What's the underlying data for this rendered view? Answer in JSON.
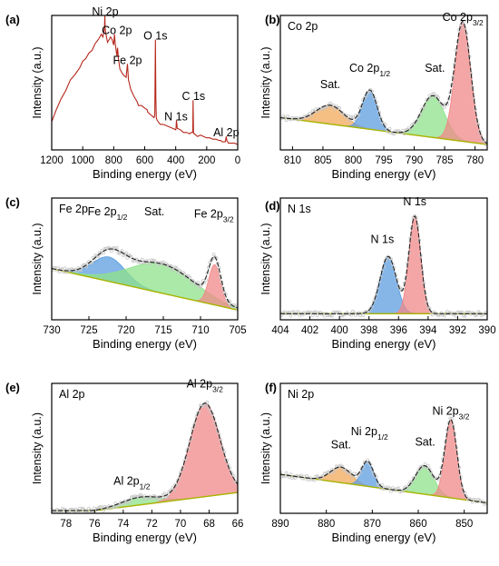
{
  "colors": {
    "survey_line": "#b5281c",
    "envelope": "#222222",
    "raw_points": "#c8c8c8",
    "background_fit": "#a8b400",
    "blue": "#5d9ee0",
    "red": "#f08888",
    "green": "#8ee28a",
    "orange": "#f2a85a"
  },
  "chart_data": [
    {
      "panel": "(a)",
      "type": "line",
      "title": "",
      "xlabel": "Binding energy (eV)",
      "ylabel": "Intensity (a.u.)",
      "xlim": [
        1200,
        0
      ],
      "x_reversed": true,
      "xticks": [
        "1200",
        "1000",
        "800",
        "600",
        "400",
        "200",
        "0"
      ],
      "grid": false,
      "series": [
        {
          "x": [
            1200,
            1170,
            1140,
            1110,
            1080,
            1050,
            1020,
            1000,
            980,
            960,
            940,
            920,
            900,
            880,
            870,
            860,
            857,
            855,
            850,
            840,
            820,
            810,
            800,
            795,
            790,
            780,
            775,
            770,
            760,
            740,
            720,
            711,
            705,
            700,
            690,
            670,
            650,
            640,
            620,
            600,
            585,
            580,
            560,
            540,
            535,
            531,
            528,
            525,
            520,
            500,
            480,
            460,
            440,
            420,
            400,
            398,
            395,
            390,
            370,
            350,
            330,
            310,
            300,
            290,
            288,
            285,
            283,
            280,
            260,
            240,
            220,
            200,
            180,
            160,
            140,
            120,
            110,
            100,
            80,
            74,
            70,
            60,
            40,
            20,
            0
          ],
          "y": [
            0.21,
            0.3,
            0.38,
            0.44,
            0.52,
            0.56,
            0.61,
            0.66,
            0.68,
            0.72,
            0.74,
            0.79,
            0.82,
            0.86,
            0.84,
            0.9,
            1.0,
            0.9,
            0.86,
            0.8,
            0.84,
            0.82,
            0.78,
            0.86,
            0.79,
            0.7,
            0.76,
            0.68,
            0.6,
            0.56,
            0.54,
            0.64,
            0.52,
            0.5,
            0.45,
            0.4,
            0.36,
            0.33,
            0.33,
            0.31,
            0.3,
            0.28,
            0.26,
            0.24,
            0.26,
            0.82,
            0.38,
            0.24,
            0.22,
            0.19,
            0.19,
            0.18,
            0.17,
            0.16,
            0.15,
            0.16,
            0.22,
            0.16,
            0.15,
            0.13,
            0.13,
            0.12,
            0.13,
            0.13,
            0.37,
            0.13,
            0.12,
            0.12,
            0.1,
            0.11,
            0.1,
            0.09,
            0.09,
            0.08,
            0.08,
            0.07,
            0.07,
            0.06,
            0.06,
            0.1,
            0.07,
            0.05,
            0.05,
            0.05,
            0.04
          ]
        }
      ],
      "annotations": [
        {
          "text": "Ni 2p",
          "x": 855,
          "y": 1.0
        },
        {
          "text": "Co 2p",
          "x": 780,
          "y": 0.86
        },
        {
          "text": "O 1s",
          "x": 531,
          "y": 0.82
        },
        {
          "text": "Fe 2p",
          "x": 711,
          "y": 0.64
        },
        {
          "text": "N 1s",
          "x": 398,
          "y": 0.22
        },
        {
          "text": "C 1s",
          "x": 285,
          "y": 0.37
        },
        {
          "text": "Al 2p",
          "x": 74,
          "y": 0.1
        }
      ]
    },
    {
      "panel": "(b)",
      "type": "area",
      "title": "Co 2p",
      "xlabel": "Binding energy (eV)",
      "ylabel": "Intensity (a.u.)",
      "xlim": [
        812,
        778
      ],
      "x_reversed": true,
      "xticks": [
        "810",
        "805",
        "800",
        "795",
        "790",
        "785",
        "780"
      ],
      "grid": false,
      "background": {
        "x": [
          812,
          778
        ],
        "y": [
          0.24,
          0.04
        ]
      },
      "peaks": [
        {
          "label": "Sat.",
          "color": "orange",
          "center": 803.8,
          "height": 0.14,
          "width": 2.3
        },
        {
          "label": "Co 2p1/2",
          "color": "blue",
          "center": 797.3,
          "height": 0.29,
          "width": 1.2
        },
        {
          "label": "Sat.",
          "color": "green",
          "center": 786.9,
          "height": 0.31,
          "width": 1.9
        },
        {
          "label": "Co 2p3/2",
          "color": "red",
          "center": 782.0,
          "height": 0.88,
          "width": 1.3
        }
      ],
      "annotations": [
        {
          "text": "Sat.",
          "x": 803.8,
          "y": 0.46
        },
        {
          "text": "Co 2p1/2",
          "x": 797.3,
          "y": 0.58
        },
        {
          "text": "Sat.",
          "x": 786.6,
          "y": 0.58
        },
        {
          "text": "Co 2p3/2",
          "x": 782.0,
          "y": 0.96
        }
      ]
    },
    {
      "panel": "(c)",
      "type": "area",
      "title": "Fe 2p",
      "xlabel": "Binding energy (eV)",
      "ylabel": "Intensity (a.u.)",
      "xlim": [
        730,
        705
      ],
      "x_reversed": true,
      "xticks": [
        "730",
        "725",
        "720",
        "715",
        "710",
        "705"
      ],
      "grid": false,
      "background": {
        "x": [
          730,
          705
        ],
        "y": [
          0.42,
          0.08
        ]
      },
      "peaks": [
        {
          "label": "Fe 2p1/2",
          "color": "blue",
          "center": 722.3,
          "height": 0.2,
          "width": 2.2
        },
        {
          "label": "Sat.",
          "color": "green",
          "center": 715.2,
          "height": 0.24,
          "width": 4.4
        },
        {
          "label": "Fe 2p3/2",
          "color": "red",
          "center": 708.1,
          "height": 0.33,
          "width": 0.8
        }
      ],
      "annotations": [
        {
          "text": "Fe 2p1/2",
          "x": 722.5,
          "y": 0.86
        },
        {
          "text": "Sat.",
          "x": 716.2,
          "y": 0.86
        },
        {
          "text": "Fe 2p3/2",
          "x": 708.2,
          "y": 0.84
        }
      ]
    },
    {
      "panel": "(d)",
      "type": "area",
      "title": "N 1s",
      "xlabel": "Binding energy (eV)",
      "ylabel": "Intensity (a.u.)",
      "xlim": [
        404,
        390
      ],
      "x_reversed": true,
      "xticks": [
        "404",
        "402",
        "400",
        "398",
        "396",
        "394",
        "392",
        "390"
      ],
      "grid": false,
      "background": {
        "x": [
          404,
          390
        ],
        "y": [
          0.05,
          0.05
        ]
      },
      "peaks": [
        {
          "label": "N 1s",
          "color": "blue",
          "center": 396.7,
          "height": 0.47,
          "width": 0.55
        },
        {
          "label": "N 1s",
          "color": "red",
          "center": 394.9,
          "height": 0.8,
          "width": 0.4
        }
      ],
      "annotations": [
        {
          "text": "N 1s",
          "x": 397.1,
          "y": 0.63
        },
        {
          "text": "N 1s",
          "x": 394.9,
          "y": 0.94
        }
      ]
    },
    {
      "panel": "(e)",
      "type": "area",
      "title": "Al 2p",
      "xlabel": "Binding energy (eV)",
      "ylabel": "Intensity (a.u.)",
      "xlim": [
        79,
        66
      ],
      "x_reversed": true,
      "xticks": [
        "78",
        "76",
        "74",
        "72",
        "70",
        "68",
        "66"
      ],
      "grid": false,
      "background": {
        "x": [
          76,
          66
        ],
        "y": [
          0.02,
          0.16
        ]
      },
      "peaks": [
        {
          "label": "Al 2p1/2",
          "color": "green",
          "center": 72.8,
          "height": 0.06,
          "width": 1.3
        },
        {
          "label": "Al 2p3/2",
          "color": "red",
          "center": 68.3,
          "height": 0.72,
          "width": 1.05
        }
      ],
      "annotations": [
        {
          "text": "Al 2p1/2",
          "x": 73.4,
          "y": 0.22
        },
        {
          "text": "Al 2p3/2",
          "x": 68.3,
          "y": 0.97
        }
      ]
    },
    {
      "panel": "(f)",
      "type": "area",
      "title": "Ni 2p",
      "xlabel": "Binding energy (eV)",
      "ylabel": "Intensity (a.u.)",
      "xlim": [
        890,
        845
      ],
      "x_reversed": true,
      "xticks": [
        "890",
        "880",
        "870",
        "860",
        "850"
      ],
      "grid": false,
      "background": {
        "x": [
          890,
          845
        ],
        "y": [
          0.3,
          0.08
        ]
      },
      "peaks": [
        {
          "label": "Sat.",
          "color": "orange",
          "center": 876.8,
          "height": 0.12,
          "width": 2.3
        },
        {
          "label": "Ni 2p1/2",
          "color": "blue",
          "center": 871.0,
          "height": 0.19,
          "width": 1.3
        },
        {
          "label": "Sat.",
          "color": "green",
          "center": 858.6,
          "height": 0.22,
          "width": 2.0
        },
        {
          "label": "Ni 2p3/2",
          "color": "red",
          "center": 852.9,
          "height": 0.6,
          "width": 1.3
        }
      ],
      "annotations": [
        {
          "text": "Sat.",
          "x": 876.8,
          "y": 0.5
        },
        {
          "text": "Ni 2p1/2",
          "x": 870.6,
          "y": 0.6
        },
        {
          "text": "Sat.",
          "x": 858.5,
          "y": 0.52
        },
        {
          "text": "Ni 2p3/2",
          "x": 852.9,
          "y": 0.76
        }
      ]
    }
  ]
}
